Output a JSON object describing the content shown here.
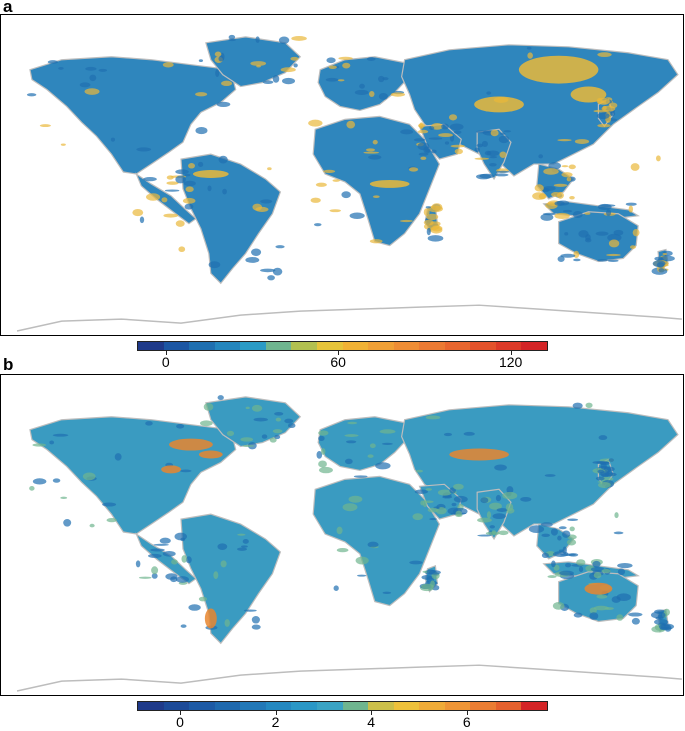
{
  "panels": [
    {
      "label": "a",
      "colorbar": {
        "colors": [
          "#1f3a8a",
          "#1c56a3",
          "#1f6fb0",
          "#2486be",
          "#2a9bc6",
          "#6fb58f",
          "#b2c050",
          "#e6c43a",
          "#f1b235",
          "#f0a036",
          "#ee8d35",
          "#eb7a33",
          "#e8662f",
          "#e3522b",
          "#dc3a28",
          "#d42426"
        ],
        "range": [
          -10,
          133
        ],
        "ticks": [
          {
            "value": 0,
            "label": "0"
          },
          {
            "value": 60,
            "label": "60"
          },
          {
            "value": 120,
            "label": "120"
          }
        ]
      }
    },
    {
      "label": "b",
      "colorbar": {
        "colors": [
          "#1f3a8a",
          "#1c4a98",
          "#1d5aa5",
          "#1f69ae",
          "#2278b7",
          "#2488c0",
          "#2a97c6",
          "#3aa3c4",
          "#6fb58f",
          "#cbbf4a",
          "#eec13b",
          "#efab38",
          "#ee9536",
          "#ea7d33",
          "#e5612e",
          "#d42426"
        ],
        "range": [
          -0.9,
          7.7
        ],
        "ticks": [
          {
            "value": 0,
            "label": "0"
          },
          {
            "value": 2,
            "label": "2"
          },
          {
            "value": 4,
            "label": "4"
          },
          {
            "value": 6,
            "label": "6"
          }
        ]
      }
    }
  ],
  "map_colors": {
    "coast": "#bdbdbd",
    "land_a": "#2f86bd",
    "land_b": "#3a9bc1",
    "accent_a": "#e9b83a",
    "accent_b": "#6fb58f",
    "hot_b": "#e8862f"
  }
}
